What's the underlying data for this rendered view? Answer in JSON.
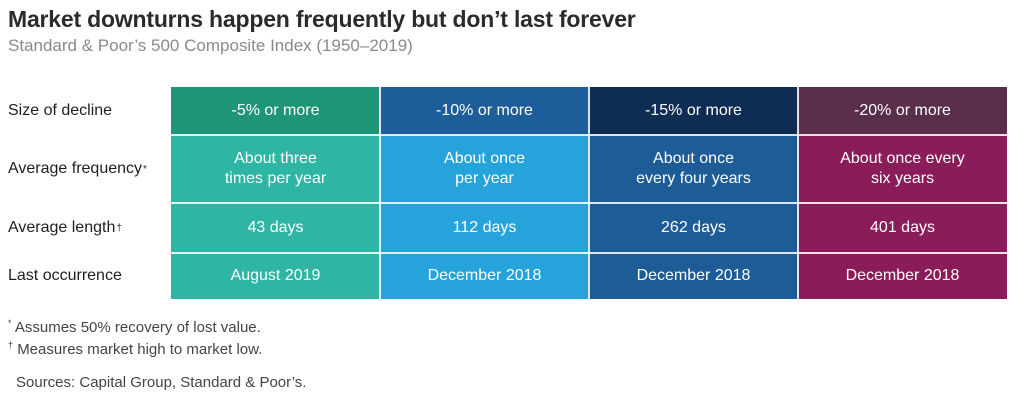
{
  "title": "Market downturns happen frequently but don’t last forever",
  "subtitle": "Standard & Poor’s 500 Composite Index (1950–2019)",
  "chart_data": {
    "type": "table",
    "row_headers": [
      {
        "label": "Size of decline",
        "mark": ""
      },
      {
        "label": "Average frequency",
        "mark": "*"
      },
      {
        "label": "Average length",
        "mark": "†"
      },
      {
        "label": "Last occurrence",
        "mark": ""
      }
    ],
    "columns": [
      {
        "decline": "-5% or more",
        "frequency_line1": "About three",
        "frequency_line2": "times per year",
        "length": "43 days",
        "last": "August 2019",
        "header_color": "#1e9577",
        "body_color": "#2fb5a3"
      },
      {
        "decline": "-10% or more",
        "frequency_line1": "About once",
        "frequency_line2": "per year",
        "length": "112 days",
        "last": "December 2018",
        "header_color": "#1d5d9a",
        "body_color": "#27a3dc"
      },
      {
        "decline": "-15% or more",
        "frequency_line1": "About once",
        "frequency_line2": "every four years",
        "length": "262 days",
        "last": "December 2018",
        "header_color": "#0f2d52",
        "body_color": "#1d5c96"
      },
      {
        "decline": "-20% or more",
        "frequency_line1": "About once every",
        "frequency_line2": "six years",
        "length": "401 days",
        "last": "December 2018",
        "header_color": "#5a2d4a",
        "body_color": "#8a1d59"
      }
    ]
  },
  "footnotes": [
    {
      "mark": "*",
      "text": "Assumes 50% recovery of lost value."
    },
    {
      "mark": "†",
      "text": "Measures market high to market low."
    }
  ],
  "sources": "Sources: Capital Group, Standard & Poor’s."
}
